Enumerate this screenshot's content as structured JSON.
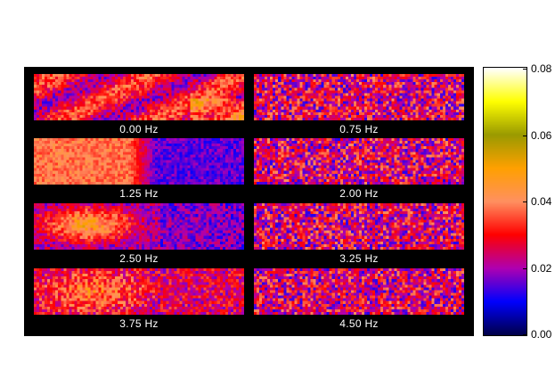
{
  "chart_data": {
    "type": "heatmap",
    "panels": [
      {
        "label": "0.00 Hz",
        "pattern": "streaks"
      },
      {
        "label": "0.75 Hz",
        "pattern": "noise"
      },
      {
        "label": "1.25 Hz",
        "pattern": "left-hot"
      },
      {
        "label": "2.00 Hz",
        "pattern": "noise"
      },
      {
        "label": "2.50 Hz",
        "pattern": "left-warm"
      },
      {
        "label": "3.25 Hz",
        "pattern": "noise"
      },
      {
        "label": "3.75 Hz",
        "pattern": "left-mild"
      },
      {
        "label": "4.50 Hz",
        "pattern": "noise"
      }
    ],
    "colorbar": {
      "range": [
        0.0,
        0.08
      ],
      "tick_labels": [
        "0.00",
        "0.02",
        "0.04",
        "0.06",
        "0.08"
      ],
      "colormap": [
        "#00004a",
        "#0000ff",
        "#b000b0",
        "#ff0000",
        "#ff9060",
        "#ffa000",
        "#9a9a00",
        "#ffff00",
        "#ffffff"
      ]
    }
  }
}
